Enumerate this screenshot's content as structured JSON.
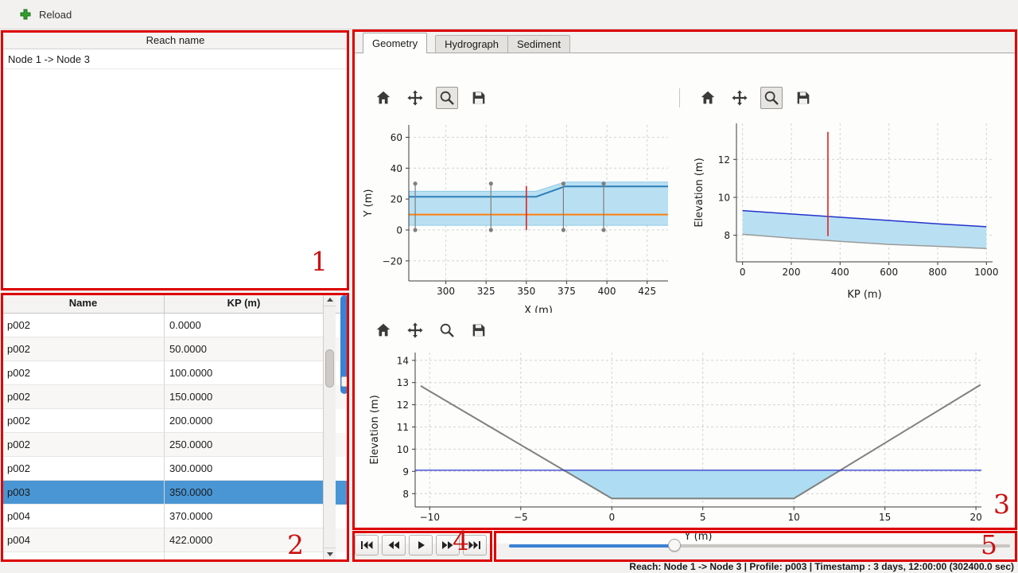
{
  "topbar": {
    "reload_label": "Reload",
    "reload_icon": "green-plus-icon"
  },
  "reach_panel": {
    "header": "Reach name",
    "items": [
      "Node 1 -> Node 3"
    ]
  },
  "profile_table": {
    "columns": [
      "Name",
      "KP (m)"
    ],
    "rows": [
      [
        "p002",
        "0.0000"
      ],
      [
        "p002",
        "50.0000"
      ],
      [
        "p002",
        "100.0000"
      ],
      [
        "p002",
        "150.0000"
      ],
      [
        "p002",
        "200.0000"
      ],
      [
        "p002",
        "250.0000"
      ],
      [
        "p002",
        "300.0000"
      ],
      [
        "p003",
        "350.0000"
      ],
      [
        "p004",
        "370.0000"
      ],
      [
        "p004",
        "422.0000"
      ]
    ],
    "selected_index": 7
  },
  "tabs": [
    {
      "label": "Geometry",
      "active": true
    },
    {
      "label": "Hydrograph",
      "active": false
    },
    {
      "label": "Sediment",
      "active": false
    }
  ],
  "toolbar_icons": [
    "home",
    "pan",
    "zoom",
    "save"
  ],
  "playback_buttons": [
    "skip-to-start",
    "rewind",
    "play",
    "fast-forward",
    "skip-to-end"
  ],
  "slider": {
    "position_pct": 33
  },
  "statusbar": {
    "text": "Reach: Node 1 -> Node 3 | Profile: p003 | Timestamp : 3 days, 12:00:00 (302400.0 sec)"
  },
  "annotations": [
    "1",
    "2",
    "3",
    "4",
    "5"
  ],
  "colors": {
    "selection_blue": "#4a96d4",
    "accent_blue": "#3b82d4",
    "annotation_red": "#dd0000",
    "water_fill": "#b9e0f2",
    "water_line": "#2433cc",
    "bed_gray": "#808080",
    "orange_line": "#ff7f0e",
    "selected_section_red": "#e02020"
  },
  "chart_data": {
    "plan_view": {
      "type": "line",
      "xlabel": "X (m)",
      "ylabel": "Y (m)",
      "xlim": [
        277,
        438
      ],
      "ylim": [
        -33,
        68
      ],
      "xticks": [
        300,
        325,
        350,
        375,
        400,
        425
      ],
      "xtick_labels": [
        "300",
        "325",
        "350",
        "375",
        "400",
        "425"
      ],
      "yticks": [
        -20,
        0,
        20,
        40,
        60
      ],
      "ytick_labels": [
        "−20",
        "0",
        "20",
        "40",
        "60"
      ],
      "margin": [
        10,
        12,
        46,
        62
      ],
      "series": [
        {
          "name": "channel-band",
          "kind": "area",
          "color": "#b9e0f2",
          "points": [
            [
              277,
              25
            ],
            [
              356,
              25
            ],
            [
              374,
              31
            ],
            [
              438,
              31
            ],
            [
              438,
              3
            ],
            [
              277,
              3
            ]
          ]
        },
        {
          "name": "band-top-edge",
          "kind": "line",
          "color": "#8fcbe8",
          "width": 1,
          "points": [
            [
              277,
              25
            ],
            [
              356,
              25
            ],
            [
              374,
              31
            ],
            [
              438,
              31
            ]
          ]
        },
        {
          "name": "band-bottom-edge",
          "kind": "line",
          "color": "#8fcbe8",
          "width": 1,
          "points": [
            [
              277,
              3
            ],
            [
              438,
              3
            ]
          ]
        },
        {
          "name": "bank-line",
          "kind": "line",
          "color": "#2d7fb8",
          "width": 2,
          "points": [
            [
              277,
              21.5
            ],
            [
              356,
              21.5
            ],
            [
              374,
              28.2
            ],
            [
              438,
              28.2
            ]
          ]
        },
        {
          "name": "thalweg-line",
          "kind": "line",
          "color": "#ff7f0e",
          "width": 2,
          "points": [
            [
              277,
              10
            ],
            [
              438,
              10
            ]
          ]
        },
        {
          "name": "section-281",
          "kind": "line",
          "color": "#7f7f7f",
          "width": 1.2,
          "markers": true,
          "points": [
            [
              281,
              0
            ],
            [
              281,
              30
            ]
          ]
        },
        {
          "name": "section-328",
          "kind": "line",
          "color": "#7f7f7f",
          "width": 1.2,
          "markers": true,
          "points": [
            [
              328,
              0
            ],
            [
              328,
              30
            ]
          ]
        },
        {
          "name": "section-373",
          "kind": "line",
          "color": "#7f7f7f",
          "width": 1.2,
          "markers": true,
          "points": [
            [
              373,
              0
            ],
            [
              373,
              30
            ]
          ]
        },
        {
          "name": "section-398",
          "kind": "line",
          "color": "#7f7f7f",
          "width": 1.2,
          "markers": true,
          "points": [
            [
              398,
              0
            ],
            [
              398,
              30
            ]
          ]
        },
        {
          "name": "selected-section",
          "kind": "line",
          "color": "#e02020",
          "width": 1.6,
          "points": [
            [
              350,
              0
            ],
            [
              350,
              28.5
            ]
          ]
        }
      ]
    },
    "long_profile": {
      "type": "line",
      "xlabel": "KP (m)",
      "ylabel": "Elevation (m)",
      "xlim": [
        -25,
        1025
      ],
      "ylim": [
        6.6,
        13.9
      ],
      "xticks": [
        0,
        200,
        400,
        600,
        800,
        1000
      ],
      "xtick_labels": [
        "0",
        "200",
        "400",
        "600",
        "800",
        "1000"
      ],
      "yticks": [
        8,
        10,
        12
      ],
      "ytick_labels": [
        "8",
        "10",
        "12"
      ],
      "margin": [
        8,
        20,
        50,
        58
      ],
      "series": [
        {
          "name": "water-body",
          "kind": "area",
          "color": "#b9e0f2",
          "points": [
            [
              0,
              9.3
            ],
            [
              200,
              9.12
            ],
            [
              400,
              8.95
            ],
            [
              600,
              8.78
            ],
            [
              800,
              8.6
            ],
            [
              1000,
              8.45
            ],
            [
              1000,
              7.3
            ],
            [
              800,
              7.42
            ],
            [
              600,
              7.52
            ],
            [
              400,
              7.68
            ],
            [
              200,
              7.85
            ],
            [
              0,
              8.05
            ]
          ]
        },
        {
          "name": "water-surface",
          "kind": "line",
          "color": "#2433cc",
          "width": 1.5,
          "points": [
            [
              0,
              9.3
            ],
            [
              200,
              9.12
            ],
            [
              400,
              8.95
            ],
            [
              600,
              8.78
            ],
            [
              800,
              8.6
            ],
            [
              1000,
              8.45
            ]
          ]
        },
        {
          "name": "bed-line",
          "kind": "line",
          "color": "#9a9a9a",
          "width": 1.5,
          "points": [
            [
              0,
              8.05
            ],
            [
              200,
              7.85
            ],
            [
              400,
              7.68
            ],
            [
              600,
              7.52
            ],
            [
              800,
              7.42
            ],
            [
              1000,
              7.3
            ]
          ]
        },
        {
          "name": "selected-profile",
          "kind": "line",
          "color": "#e02020",
          "width": 1.6,
          "points": [
            [
              350,
              7.95
            ],
            [
              350,
              13.45
            ]
          ]
        }
      ]
    },
    "cross_section": {
      "type": "line",
      "xlabel": "Y (m)",
      "ylabel": "Elevation (m)",
      "xlim": [
        -10.8,
        20.3
      ],
      "ylim": [
        7.4,
        14.35
      ],
      "xticks": [
        -10,
        -5,
        0,
        5,
        10,
        15,
        20
      ],
      "xtick_labels": [
        "−10",
        "−5",
        "0",
        "5",
        "10",
        "15",
        "20"
      ],
      "yticks": [
        8,
        9,
        10,
        11,
        12,
        13,
        14
      ],
      "ytick_labels": [
        "8",
        "9",
        "10",
        "11",
        "12",
        "13",
        "14"
      ],
      "margin": [
        10,
        16,
        46,
        62
      ],
      "series": [
        {
          "name": "water-area",
          "kind": "area",
          "color": "#aedcf2",
          "points": [
            [
              -2.68,
              9.05
            ],
            [
              0,
              7.78
            ],
            [
              10,
              7.78
            ],
            [
              12.65,
              9.05
            ]
          ]
        },
        {
          "name": "bed-profile",
          "kind": "line",
          "color": "#808080",
          "width": 2,
          "points": [
            [
              -10.5,
              12.85
            ],
            [
              0,
              7.78
            ],
            [
              10,
              7.78
            ],
            [
              20.25,
              12.9
            ]
          ]
        },
        {
          "name": "water-level",
          "kind": "line",
          "color": "#2433cc",
          "width": 1.3,
          "points": [
            [
              -10.8,
              9.05
            ],
            [
              20.3,
              9.05
            ]
          ]
        }
      ]
    }
  }
}
